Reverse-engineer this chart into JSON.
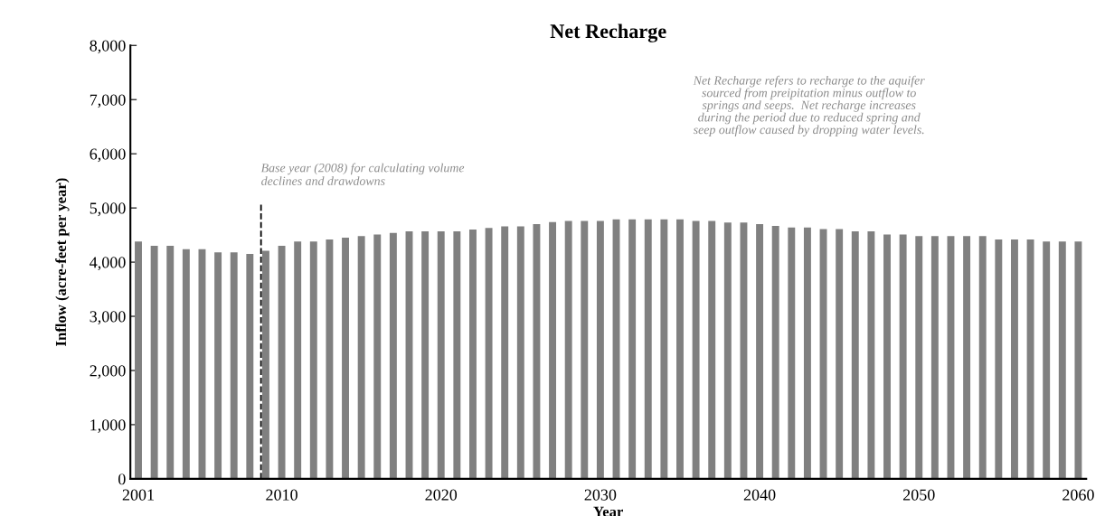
{
  "chart_data": {
    "type": "bar",
    "title": "Net Recharge",
    "xlabel": "Year",
    "ylabel": "Inflow (acre-feet per year)",
    "x": [
      2001,
      2002,
      2003,
      2004,
      2005,
      2006,
      2007,
      2008,
      2009,
      2010,
      2011,
      2012,
      2013,
      2014,
      2015,
      2016,
      2017,
      2018,
      2019,
      2020,
      2021,
      2022,
      2023,
      2024,
      2025,
      2026,
      2027,
      2028,
      2029,
      2030,
      2031,
      2032,
      2033,
      2034,
      2035,
      2036,
      2037,
      2038,
      2039,
      2040,
      2041,
      2042,
      2043,
      2044,
      2045,
      2046,
      2047,
      2048,
      2049,
      2050,
      2051,
      2052,
      2053,
      2054,
      2055,
      2056,
      2057,
      2058,
      2059,
      2060
    ],
    "values": [
      4380,
      4300,
      4300,
      4240,
      4240,
      4180,
      4180,
      4150,
      4210,
      4300,
      4380,
      4380,
      4420,
      4450,
      4480,
      4510,
      4540,
      4570,
      4570,
      4570,
      4570,
      4600,
      4630,
      4660,
      4660,
      4700,
      4740,
      4760,
      4760,
      4760,
      4790,
      4790,
      4790,
      4790,
      4790,
      4760,
      4760,
      4730,
      4730,
      4700,
      4670,
      4640,
      4640,
      4610,
      4610,
      4570,
      4570,
      4510,
      4510,
      4480,
      4480,
      4480,
      4480,
      4480,
      4420,
      4420,
      4420,
      4380,
      4380,
      4380
    ],
    "color": "#808080",
    "xlim": [
      2000.5,
      2060.5
    ],
    "xticks": [
      2001,
      2010,
      2020,
      2030,
      2040,
      2050,
      2060
    ],
    "ylim": [
      0,
      8000
    ],
    "yticks": [
      0,
      {
        "value": 1000,
        "label": "1,000"
      },
      {
        "value": 2000,
        "label": "2,000"
      },
      {
        "value": 3000,
        "label": "3,000"
      },
      {
        "value": 4000,
        "label": "4,000"
      },
      {
        "value": 5000,
        "label": "5,000"
      },
      {
        "value": 6000,
        "label": "6,000"
      },
      {
        "value": 7000,
        "label": "7,000"
      },
      {
        "value": 8000,
        "label": "8,000"
      }
    ],
    "ref_lines": [
      {
        "axis": "x",
        "value": 2008.7,
        "label": "Base year (2008) for calculating volume\ndeclines and drawdowns",
        "color": "#000000",
        "line_style": "dashed"
      }
    ],
    "annotations": [
      "Net Recharge refers to recharge to the aquifer\nsourced from preipitation minus outflow to\nsprings and seeps.  Net recharge increases\nduring the period due to reduced spring and\nseep outflow caused by dropping water levels."
    ],
    "grid": false,
    "legend": false
  }
}
